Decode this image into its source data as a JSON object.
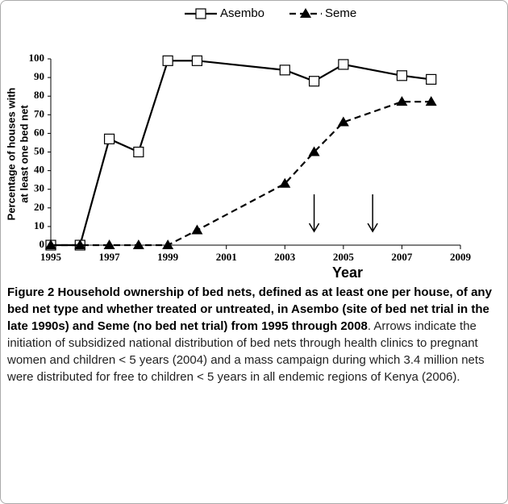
{
  "chart_data": {
    "type": "line",
    "x": [
      1995,
      1996,
      1997,
      1998,
      1999,
      2000,
      2003,
      2004,
      2005,
      2007,
      2008
    ],
    "series": [
      {
        "name": "Asembo",
        "color": "#000000",
        "marker": "square",
        "dashed": false,
        "values": [
          0,
          0,
          57,
          50,
          99,
          99,
          94,
          88,
          97,
          91,
          89
        ]
      },
      {
        "name": "Seme",
        "color": "#000000",
        "marker": "triangle",
        "dashed": true,
        "values": [
          0,
          0,
          0,
          0,
          0,
          8,
          33,
          50,
          66,
          77,
          77
        ]
      }
    ],
    "xlim": [
      1995,
      2009
    ],
    "xticks": [
      1995,
      1997,
      1999,
      2001,
      2003,
      2005,
      2007,
      2009
    ],
    "ylim": [
      0,
      100
    ],
    "yticks": [
      0,
      10,
      20,
      30,
      40,
      50,
      60,
      70,
      80,
      90,
      100
    ],
    "xlabel": "Year",
    "ylabel": [
      "Percentage of houses with",
      "at least one bed net"
    ],
    "arrows_x": [
      2004,
      2006
    ],
    "grid": false
  },
  "caption": {
    "bold": "Figure 2 Household ownership of bed nets, defined as at least one per house, of any bed net type and whether treated or untreated, in Asembo (site of bed net trial in the late 1990s) and Seme (no bed net trial) from 1995 through 2008",
    "text": ". Arrows indicate the initiation of subsidized national distribution of bed nets through health clinics to pregnant women and children < 5 years (2004) and a mass campaign during which 3.4 million nets were distributed for free to children < 5 years in all endemic regions of Kenya (2006)."
  }
}
